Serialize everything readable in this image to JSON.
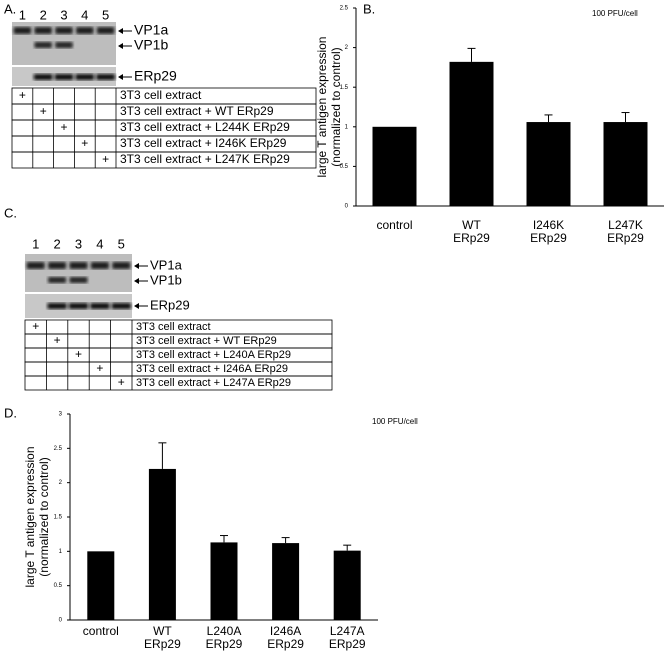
{
  "panels": {
    "a": "A.",
    "b": "B.",
    "c": "C.",
    "d": "D."
  },
  "blots": [
    {
      "lanes": [
        "1",
        "2",
        "3",
        "4",
        "5"
      ],
      "bands": [
        "VP1a",
        "VP1b",
        "ERp29"
      ],
      "plus": "+",
      "rows": [
        "3T3 cell extract",
        "3T3 cell extract + WT ERp29",
        "3T3 cell extract + L244K ERp29",
        "3T3 cell extract + I246K ERp29",
        "3T3 cell extract + L247K ERp29"
      ]
    },
    {
      "lanes": [
        "1",
        "2",
        "3",
        "4",
        "5"
      ],
      "bands": [
        "VP1a",
        "VP1b",
        "ERp29"
      ],
      "plus": "+",
      "rows": [
        "3T3 cell extract",
        "3T3 cell extract + WT ERp29",
        "3T3 cell extract + L240A ERp29",
        "3T3 cell extract + I246A ERp29",
        "3T3 cell extract + L247A ERp29"
      ]
    }
  ],
  "chart_data": [
    {
      "type": "bar",
      "annotation": "100 PFU/cell",
      "ylabel": "large T antigen expression (normalized to control)",
      "categories": [
        "control",
        "WT ERp29",
        "I246K ERp29",
        "L247K ERp29"
      ],
      "values": [
        1,
        1.82,
        1.06,
        1.06
      ],
      "errors": [
        0,
        0.17,
        0.09,
        0.12
      ],
      "color": "#000000",
      "ylim": [
        0,
        2.5
      ],
      "yticks": [
        0,
        0.5,
        1,
        1.5,
        2,
        2.5
      ]
    },
    {
      "type": "bar",
      "annotation": "100 PFU/cell",
      "ylabel": "large T antigen expression (normalized to control)",
      "categories": [
        "control",
        "WT ERp29",
        "L240A ERp29",
        "I246A ERp29",
        "L247A ERp29"
      ],
      "values": [
        1,
        2.2,
        1.13,
        1.12,
        1.01
      ],
      "errors": [
        0,
        0.38,
        0.1,
        0.08,
        0.08
      ],
      "color": "#000000",
      "ylim": [
        0,
        3
      ],
      "yticks": [
        0,
        0.5,
        1,
        1.5,
        2,
        2.5,
        3
      ]
    }
  ]
}
